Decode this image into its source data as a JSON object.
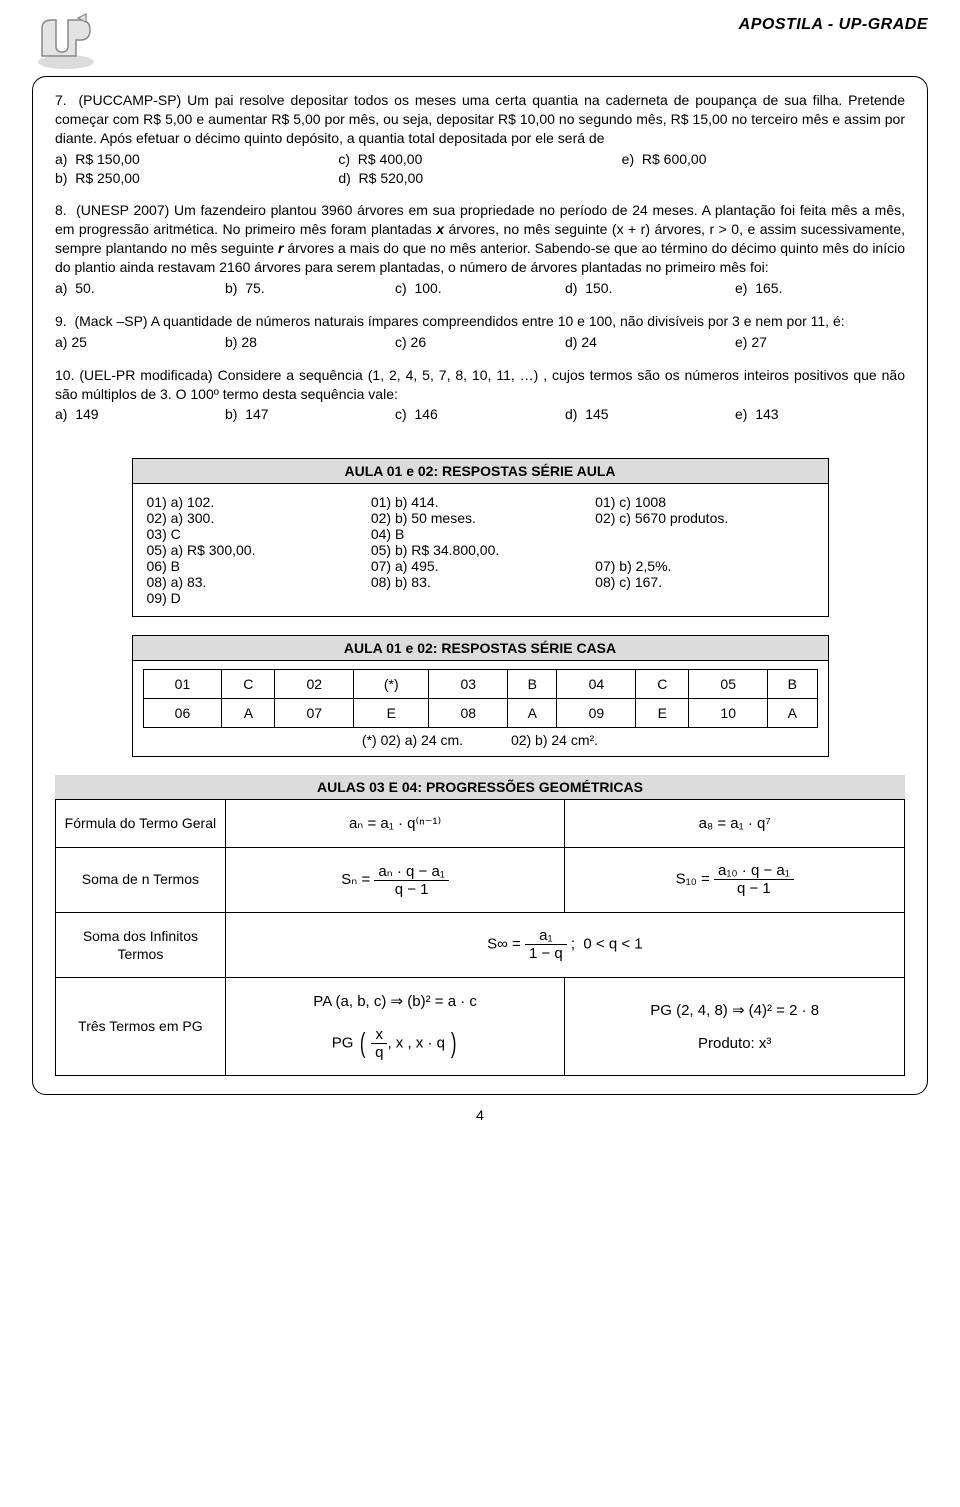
{
  "header": {
    "title": "APOSTILA - UP-GRADE"
  },
  "questions": {
    "q7": {
      "text": "7.  (PUCCAMP-SP) Um pai resolve depositar todos os meses uma certa quantia na caderneta de poupança de sua filha. Pretende começar com R$ 5,00 e aumentar R$ 5,00 por mês, ou seja, depositar R$ 10,00 no segundo mês, R$ 15,00 no terceiro mês e assim por diante. Após efetuar o décimo quinto depósito, a quantia total depositada por ele será de",
      "opts": {
        "a": "a)  R$ 150,00",
        "b": "b)  R$ 250,00",
        "c": "c)  R$ 400,00",
        "d": "d)  R$ 520,00",
        "e": "e)  R$ 600,00"
      }
    },
    "q8": {
      "text_a": "8.  (UNESP 2007) Um fazendeiro plantou 3960 árvores em sua propriedade no período de 24 meses. A plantação foi feita mês a mês, em progressão aritmética. No primeiro mês foram plantadas ",
      "bold_x": "x",
      "text_b": " árvores, no mês seguinte (x + r) árvores, r > 0, e assim sucessivamente, sempre plantando no mês seguinte ",
      "bold_r": "r",
      "text_c": " árvores a mais do que no mês anterior. Sabendo-se que ao término do décimo quinto mês do início do plantio ainda restavam 2160 árvores para serem plantadas, o número de árvores plantadas no primeiro mês foi:",
      "opts": {
        "a": "a)  50.",
        "b": "b)  75.",
        "c": "c)  100.",
        "d": "d)  150.",
        "e": "e)  165."
      }
    },
    "q9": {
      "text": "9.  (Mack –SP) A quantidade de números naturais ímpares compreendidos entre 10 e 100, não divisíveis por 3 e nem por 11, é:",
      "opts": {
        "a": "a) 25",
        "b": "b) 28",
        "c": "c) 26",
        "d": "d) 24",
        "e": "e) 27"
      }
    },
    "q10": {
      "text": "10. (UEL-PR modificada) Considere a sequência (1, 2, 4, 5, 7, 8, 10, 11, …) , cujos termos são os números inteiros positivos que não são múltiplos de 3. O 100º termo desta sequência vale:",
      "opts": {
        "a": "a)  149",
        "b": "b)  147",
        "c": "c)  146",
        "d": "d)  145",
        "e": "e)  143"
      }
    }
  },
  "aula_answers": {
    "title": "AULA 01 e 02: RESPOSTAS SÉRIE AULA",
    "cells": [
      "01) a) 102.",
      "01) b) 414.",
      "01) c) 1008",
      "02) a) 300.",
      "02) b) 50 meses.",
      "02) c) 5670 produtos.",
      "03) C",
      "04) B",
      "",
      "05) a) R$ 300,00.",
      "05) b) R$ 34.800,00.",
      "",
      "06) B",
      "07) a) 495.",
      "07) b) 2,5%.",
      "08) a) 83.",
      "08) b) 83.",
      "08) c) 167.",
      "09) D",
      "",
      ""
    ]
  },
  "casa_answers": {
    "title": "AULA 01 e 02: RESPOSTAS SÉRIE CASA",
    "rows": [
      [
        "01",
        "C",
        "02",
        "(*)",
        "03",
        "B",
        "04",
        "C",
        "05",
        "B"
      ],
      [
        "06",
        "A",
        "07",
        "E",
        "08",
        "A",
        "09",
        "E",
        "10",
        "A"
      ]
    ],
    "note_a": "(*) 02) a) 24 cm.",
    "note_b": "02) b) 24 cm²."
  },
  "pg_section": {
    "title": "AULAS 03 E 04: PROGRESSÕES GEOMÉTRICAS",
    "rows": {
      "r1": {
        "label": "Fórmula do Termo Geral",
        "mid": "aₙ = a₁ · q⁽ⁿ⁻¹⁾",
        "right": "a₈ = a₁ · q⁷"
      },
      "r2": {
        "label": "Soma de n Termos",
        "mid_num": "aₙ · q − a₁",
        "mid_den": "q − 1",
        "right_num": "a₁₀ · q − a₁",
        "right_den": "q − 1",
        "mid_pre": "Sₙ = ",
        "right_pre": "S₁₀ = "
      },
      "r3": {
        "label": "Soma dos Infinitos Termos",
        "pre": "S∞ = ",
        "num": "a₁",
        "den": "1 − q",
        "post": " ;  0 < q < 1"
      },
      "r4": {
        "label": "Três Termos em PG",
        "mid1": "PA (a, b, c) ⇒ (b)² = a · c",
        "right1": "PG (2, 4, 8) ⇒ (4)² = 2 · 8",
        "mid2_pre": "PG",
        "mid2_num": "x",
        "mid2_den": "q",
        "mid2_post": ", x , x · q",
        "right2": "Produto: x³"
      }
    }
  },
  "page_number": "4"
}
